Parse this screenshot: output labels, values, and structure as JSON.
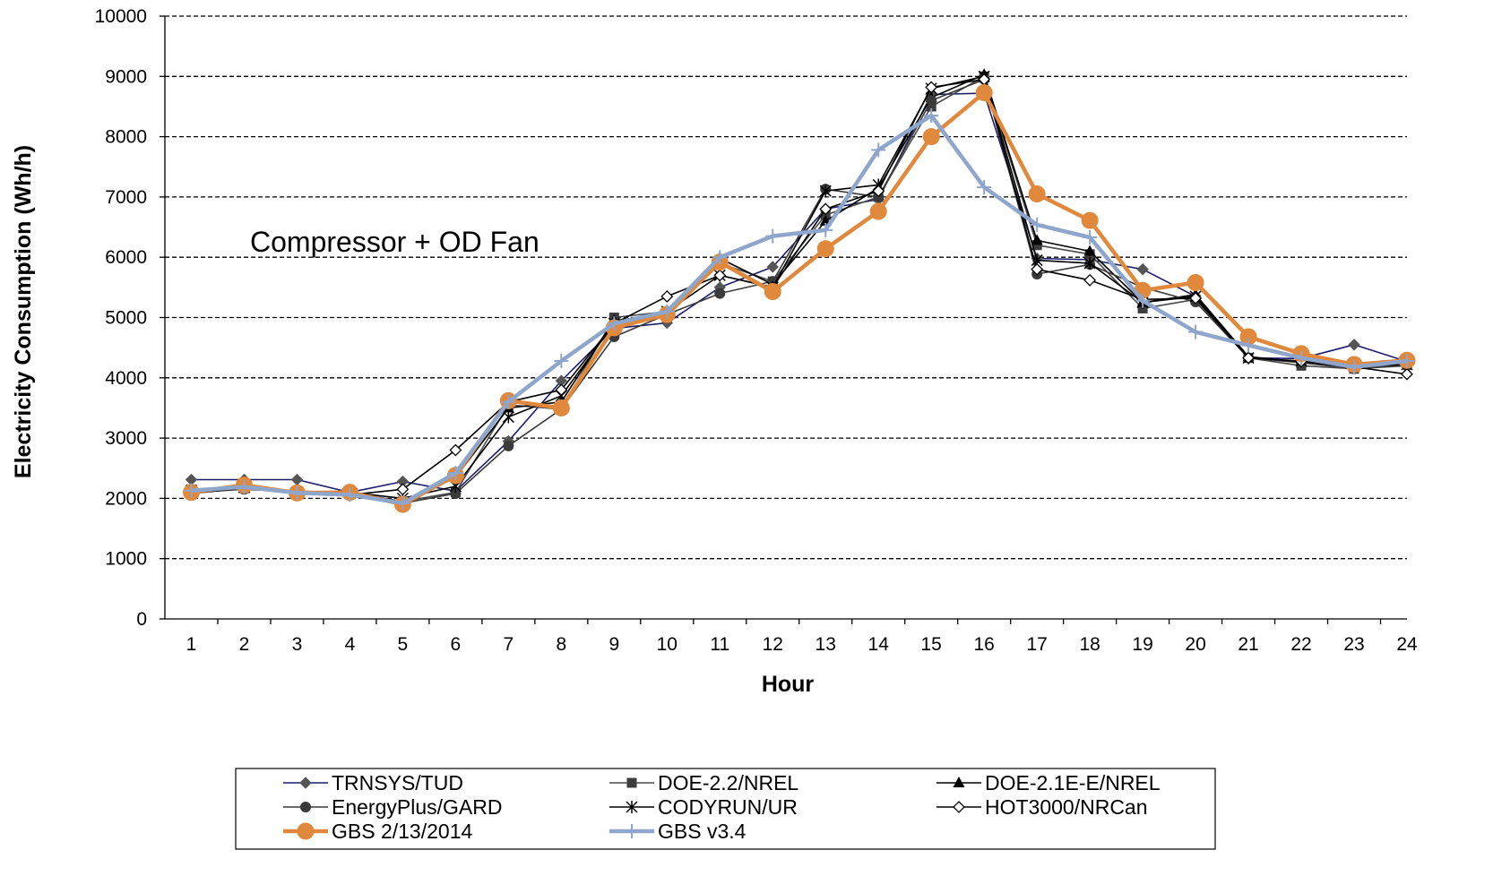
{
  "chart_data": {
    "type": "line",
    "title": "",
    "annotation": "Compressor + OD Fan",
    "xlabel": "Hour",
    "ylabel": "Electricity Consumption (Wh/h)",
    "ylim": [
      0,
      10000
    ],
    "yticks": [
      0,
      1000,
      2000,
      3000,
      4000,
      5000,
      6000,
      7000,
      8000,
      9000,
      10000
    ],
    "x": [
      1,
      2,
      3,
      4,
      5,
      6,
      7,
      8,
      9,
      10,
      11,
      12,
      13,
      14,
      15,
      16,
      17,
      18,
      19,
      20,
      21,
      22,
      23,
      24
    ],
    "grid": "horizontal dashed",
    "legend_position": "bottom",
    "series": [
      {
        "name": "TRNSYS/TUD",
        "color": "#1c1c6e",
        "marker": "diamond-filled",
        "values": [
          2310,
          2310,
          2310,
          2100,
          2280,
          2120,
          2950,
          3950,
          4820,
          4910,
          5500,
          5840,
          6800,
          6960,
          8700,
          8720,
          5980,
          5960,
          5800,
          5350,
          4330,
          4320,
          4550,
          4270
        ]
      },
      {
        "name": "DOE-2.2/NREL",
        "color": "#4a4a4a",
        "marker": "square-filled",
        "values": [
          2150,
          2200,
          2120,
          2100,
          1950,
          2100,
          3550,
          3480,
          5000,
          5100,
          5900,
          5600,
          6700,
          7000,
          8500,
          9000,
          6200,
          6050,
          5150,
          5300,
          4330,
          4200,
          4150,
          4220
        ]
      },
      {
        "name": "DOE-2.1E-E/NREL",
        "color": "#000000",
        "marker": "triangle-filled",
        "values": [
          2120,
          2180,
          2100,
          2080,
          1900,
          2350,
          3500,
          3600,
          4950,
          5050,
          5980,
          5550,
          6600,
          7150,
          8650,
          9030,
          6280,
          6100,
          5250,
          5380,
          4350,
          4260,
          4180,
          4260
        ]
      },
      {
        "name": "EnergyPlus/GARD",
        "color": "#3a3a3a",
        "marker": "circle-filled",
        "values": [
          2100,
          2150,
          2110,
          2080,
          1920,
          2080,
          2870,
          3480,
          4680,
          5050,
          5400,
          5600,
          7130,
          7000,
          8600,
          8950,
          5720,
          5880,
          5500,
          5260,
          4330,
          4250,
          4150,
          4200
        ]
      },
      {
        "name": "CODYRUN/UR",
        "color": "#000000",
        "marker": "asterisk",
        "values": [
          2130,
          2180,
          2100,
          2100,
          2000,
          2200,
          3350,
          3700,
          4900,
          5100,
          5700,
          5500,
          7100,
          7200,
          8800,
          9000,
          5950,
          5900,
          5250,
          5350,
          4330,
          4280,
          4200,
          4220
        ]
      },
      {
        "name": "HOT3000/NRCan",
        "color": "#000000",
        "marker": "diamond-open",
        "values": [
          2080,
          2170,
          2080,
          2060,
          2150,
          2800,
          3600,
          3800,
          4900,
          5350,
          5700,
          5500,
          6800,
          7100,
          8820,
          8950,
          5800,
          5620,
          5300,
          5320,
          4330,
          4270,
          4180,
          4060
        ]
      },
      {
        "name": "GBS 2/13/2014",
        "color": "#e0883c",
        "marker": "circle-large",
        "values": [
          2100,
          2220,
          2090,
          2100,
          1900,
          2380,
          3620,
          3500,
          4830,
          5050,
          5920,
          5430,
          6140,
          6760,
          8000,
          8730,
          7050,
          6610,
          5450,
          5580,
          4680,
          4400,
          4220,
          4290
        ]
      },
      {
        "name": "GBS v3.4",
        "color": "#8fa6cc",
        "marker": "plus",
        "values": [
          2130,
          2190,
          2090,
          2060,
          1920,
          2420,
          3600,
          4280,
          4900,
          5100,
          6000,
          6350,
          6450,
          7780,
          8350,
          7160,
          6540,
          6330,
          5280,
          4760,
          4540,
          4330,
          4180,
          4280
        ]
      }
    ]
  }
}
